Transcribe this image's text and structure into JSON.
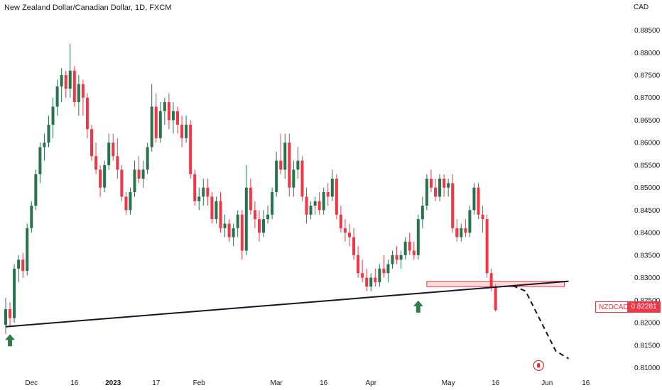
{
  "header": {
    "title": "New Zealand Dollar/Canadian Dollar, 1D, FXCM",
    "currency": "CAD"
  },
  "price_tag": {
    "symbol": "NZDCAD",
    "value": "0.82281"
  },
  "colors": {
    "up": "#26734d",
    "down": "#f23645",
    "trendline": "#131722",
    "zone_fill": "#f7c4c8",
    "zone_border": "#f23645",
    "arrow": "#2e7d47"
  },
  "icons": [
    "up-arrow-icon",
    "up-arrow-icon",
    "canada-flag-icon"
  ],
  "chart_data": {
    "type": "candlestick",
    "title": "New Zealand Dollar/Canadian Dollar, 1D, FXCM",
    "ylabel": "CAD",
    "ylim": [
      0.8085,
      0.8895
    ],
    "y_ticks": [
      "0.88500",
      "0.88000",
      "0.87500",
      "0.87000",
      "0.86500",
      "0.86000",
      "0.85500",
      "0.85000",
      "0.84500",
      "0.84000",
      "0.83500",
      "0.83000",
      "0.82500",
      "0.82000",
      "0.81500",
      "0.81000"
    ],
    "x_ticks": [
      {
        "label": "Dec",
        "bar": 6,
        "bold": false
      },
      {
        "label": "16",
        "bar": 16,
        "bold": false
      },
      {
        "label": "2023",
        "bar": 25,
        "bold": true
      },
      {
        "label": "17",
        "bar": 35,
        "bold": false
      },
      {
        "label": "Feb",
        "bar": 45,
        "bold": false
      },
      {
        "label": "Mar",
        "bar": 63,
        "bold": false
      },
      {
        "label": "16",
        "bar": 74,
        "bold": false
      },
      {
        "label": "Apr",
        "bar": 85,
        "bold": false
      },
      {
        "label": "May",
        "bar": 103,
        "bold": false
      },
      {
        "label": "16",
        "bar": 114,
        "bold": false
      },
      {
        "label": "Jun",
        "bar": 126,
        "bold": false
      },
      {
        "label": "16",
        "bar": 135,
        "bold": false
      }
    ],
    "last_price": 0.82281,
    "candles": [
      [
        0.8195,
        0.8255,
        0.8175,
        0.823
      ],
      [
        0.823,
        0.8245,
        0.819,
        0.821
      ],
      [
        0.821,
        0.833,
        0.82,
        0.832
      ],
      [
        0.832,
        0.835,
        0.829,
        0.834
      ],
      [
        0.834,
        0.8355,
        0.83,
        0.8315
      ],
      [
        0.8315,
        0.842,
        0.8305,
        0.841
      ],
      [
        0.841,
        0.847,
        0.84,
        0.846
      ],
      [
        0.846,
        0.854,
        0.845,
        0.853
      ],
      [
        0.853,
        0.86,
        0.851,
        0.859
      ],
      [
        0.859,
        0.862,
        0.856,
        0.86
      ],
      [
        0.86,
        0.866,
        0.859,
        0.864
      ],
      [
        0.864,
        0.87,
        0.861,
        0.868
      ],
      [
        0.868,
        0.874,
        0.866,
        0.8725
      ],
      [
        0.8725,
        0.8765,
        0.869,
        0.875
      ],
      [
        0.875,
        0.876,
        0.87,
        0.872
      ],
      [
        0.872,
        0.882,
        0.87,
        0.876
      ],
      [
        0.876,
        0.877,
        0.868,
        0.869
      ],
      [
        0.869,
        0.875,
        0.866,
        0.873
      ],
      [
        0.873,
        0.874,
        0.866,
        0.87
      ],
      [
        0.87,
        0.871,
        0.861,
        0.863
      ],
      [
        0.863,
        0.864,
        0.856,
        0.857
      ],
      [
        0.857,
        0.86,
        0.853,
        0.854
      ],
      [
        0.854,
        0.855,
        0.848,
        0.85
      ],
      [
        0.85,
        0.856,
        0.849,
        0.855
      ],
      [
        0.855,
        0.862,
        0.854,
        0.86
      ],
      [
        0.86,
        0.862,
        0.856,
        0.857
      ],
      [
        0.857,
        0.861,
        0.852,
        0.854
      ],
      [
        0.854,
        0.855,
        0.847,
        0.848
      ],
      [
        0.848,
        0.849,
        0.844,
        0.845
      ],
      [
        0.845,
        0.85,
        0.844,
        0.849
      ],
      [
        0.849,
        0.856,
        0.848,
        0.854
      ],
      [
        0.854,
        0.857,
        0.851,
        0.852
      ],
      [
        0.852,
        0.856,
        0.85,
        0.854
      ],
      [
        0.854,
        0.86,
        0.853,
        0.859
      ],
      [
        0.859,
        0.873,
        0.858,
        0.868
      ],
      [
        0.868,
        0.871,
        0.86,
        0.861
      ],
      [
        0.861,
        0.869,
        0.86,
        0.867
      ],
      [
        0.867,
        0.87,
        0.864,
        0.869
      ],
      [
        0.869,
        0.871,
        0.863,
        0.865
      ],
      [
        0.865,
        0.869,
        0.862,
        0.867
      ],
      [
        0.867,
        0.868,
        0.862,
        0.864
      ],
      [
        0.864,
        0.866,
        0.859,
        0.861
      ],
      [
        0.861,
        0.866,
        0.86,
        0.864
      ],
      [
        0.864,
        0.865,
        0.852,
        0.853
      ],
      [
        0.853,
        0.854,
        0.846,
        0.847
      ],
      [
        0.847,
        0.85,
        0.845,
        0.848
      ],
      [
        0.848,
        0.852,
        0.846,
        0.85
      ],
      [
        0.85,
        0.852,
        0.846,
        0.848
      ],
      [
        0.848,
        0.849,
        0.842,
        0.843
      ],
      [
        0.843,
        0.848,
        0.842,
        0.847
      ],
      [
        0.847,
        0.849,
        0.84,
        0.841
      ],
      [
        0.841,
        0.844,
        0.839,
        0.842
      ],
      [
        0.842,
        0.843,
        0.838,
        0.839
      ],
      [
        0.839,
        0.842,
        0.837,
        0.841
      ],
      [
        0.841,
        0.845,
        0.839,
        0.844
      ],
      [
        0.844,
        0.845,
        0.834,
        0.836
      ],
      [
        0.836,
        0.855,
        0.835,
        0.85
      ],
      [
        0.85,
        0.852,
        0.844,
        0.845
      ],
      [
        0.845,
        0.847,
        0.841,
        0.843
      ],
      [
        0.843,
        0.845,
        0.838,
        0.84
      ],
      [
        0.84,
        0.845,
        0.839,
        0.843
      ],
      [
        0.843,
        0.846,
        0.842,
        0.844
      ],
      [
        0.844,
        0.85,
        0.843,
        0.849
      ],
      [
        0.849,
        0.858,
        0.848,
        0.856
      ],
      [
        0.856,
        0.862,
        0.853,
        0.854
      ],
      [
        0.854,
        0.862,
        0.852,
        0.86
      ],
      [
        0.86,
        0.862,
        0.848,
        0.85
      ],
      [
        0.85,
        0.856,
        0.848,
        0.854
      ],
      [
        0.854,
        0.859,
        0.852,
        0.856
      ],
      [
        0.856,
        0.857,
        0.847,
        0.848
      ],
      [
        0.848,
        0.85,
        0.842,
        0.844
      ],
      [
        0.844,
        0.847,
        0.843,
        0.846
      ],
      [
        0.846,
        0.848,
        0.844,
        0.847
      ],
      [
        0.847,
        0.849,
        0.844,
        0.845
      ],
      [
        0.845,
        0.85,
        0.844,
        0.849
      ],
      [
        0.849,
        0.851,
        0.846,
        0.848
      ],
      [
        0.848,
        0.854,
        0.847,
        0.852
      ],
      [
        0.852,
        0.853,
        0.843,
        0.844
      ],
      [
        0.844,
        0.846,
        0.84,
        0.841
      ],
      [
        0.841,
        0.843,
        0.838,
        0.84
      ],
      [
        0.84,
        0.842,
        0.837,
        0.839
      ],
      [
        0.839,
        0.841,
        0.834,
        0.835
      ],
      [
        0.835,
        0.837,
        0.83,
        0.831
      ],
      [
        0.831,
        0.834,
        0.829,
        0.83
      ],
      [
        0.83,
        0.832,
        0.827,
        0.828
      ],
      [
        0.828,
        0.831,
        0.827,
        0.83
      ],
      [
        0.83,
        0.832,
        0.828,
        0.829
      ],
      [
        0.829,
        0.833,
        0.828,
        0.832
      ],
      [
        0.832,
        0.835,
        0.83,
        0.831
      ],
      [
        0.831,
        0.834,
        0.829,
        0.833
      ],
      [
        0.833,
        0.836,
        0.832,
        0.835
      ],
      [
        0.835,
        0.837,
        0.833,
        0.834
      ],
      [
        0.834,
        0.836,
        0.832,
        0.835
      ],
      [
        0.835,
        0.839,
        0.834,
        0.838
      ],
      [
        0.838,
        0.84,
        0.835,
        0.836
      ],
      [
        0.836,
        0.838,
        0.834,
        0.835
      ],
      [
        0.835,
        0.844,
        0.834,
        0.843
      ],
      [
        0.843,
        0.848,
        0.841,
        0.846
      ],
      [
        0.846,
        0.853,
        0.845,
        0.852
      ],
      [
        0.852,
        0.854,
        0.849,
        0.85
      ],
      [
        0.85,
        0.852,
        0.847,
        0.848
      ],
      [
        0.848,
        0.853,
        0.847,
        0.852
      ],
      [
        0.852,
        0.853,
        0.848,
        0.85
      ],
      [
        0.85,
        0.852,
        0.848,
        0.851
      ],
      [
        0.851,
        0.853,
        0.84,
        0.841
      ],
      [
        0.841,
        0.843,
        0.838,
        0.839
      ],
      [
        0.839,
        0.842,
        0.838,
        0.841
      ],
      [
        0.841,
        0.843,
        0.839,
        0.84
      ],
      [
        0.84,
        0.846,
        0.839,
        0.845
      ],
      [
        0.845,
        0.851,
        0.844,
        0.85
      ],
      [
        0.85,
        0.851,
        0.843,
        0.844
      ],
      [
        0.844,
        0.846,
        0.84,
        0.843
      ],
      [
        0.843,
        0.844,
        0.83,
        0.831
      ],
      [
        0.831,
        0.832,
        0.827,
        0.828
      ],
      [
        0.828,
        0.8285,
        0.8225,
        0.8228
      ]
    ],
    "annotations": {
      "trendline": {
        "from": {
          "bar": 0,
          "price": 0.8191
        },
        "to": {
          "bar": 131,
          "price": 0.8292
        }
      },
      "zone": {
        "from_bar": 98,
        "to_bar": 130,
        "low": 0.828,
        "high": 0.8292
      },
      "projection": [
        {
          "bar": 118,
          "price": 0.8282
        },
        {
          "bar": 121,
          "price": 0.827
        },
        {
          "bar": 128,
          "price": 0.8137
        },
        {
          "bar": 131,
          "price": 0.812
        }
      ],
      "arrows": [
        {
          "bar": 1,
          "price": 0.816
        },
        {
          "bar": 96,
          "price": 0.8235
        }
      ],
      "event_icon": {
        "bar": 124,
        "price": 0.8105
      }
    }
  }
}
